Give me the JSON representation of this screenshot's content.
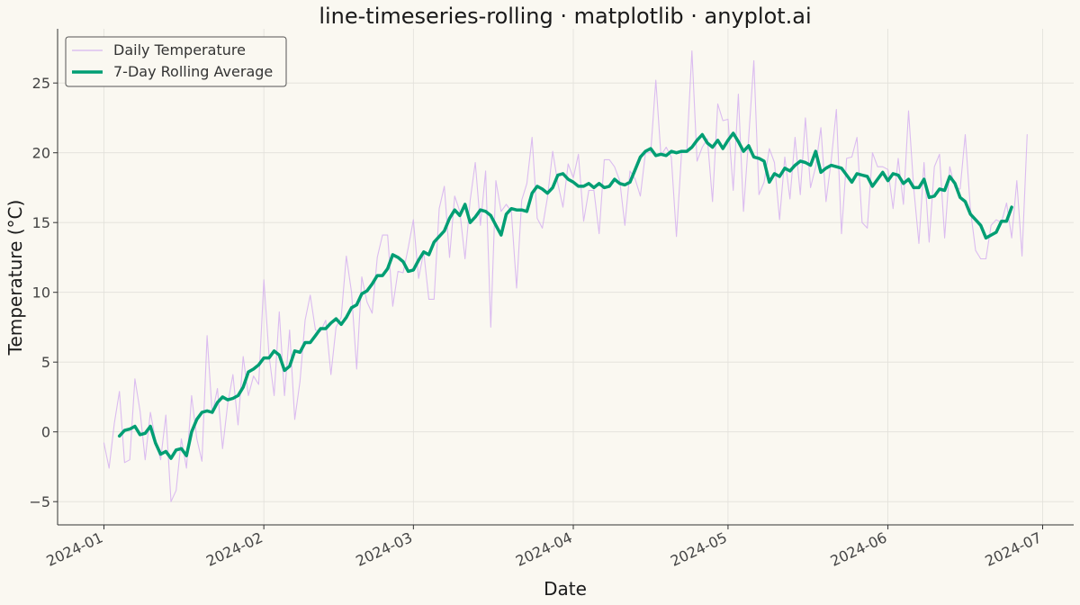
{
  "chart_data": {
    "type": "line",
    "title": "line-timeseries-rolling · matplotlib · anyplot.ai",
    "xlabel": "Date",
    "ylabel": "Temperature (°C)",
    "x_range": [
      "2024-01-01",
      "2024-07-01"
    ],
    "ylim": [
      -6.7,
      28.7
    ],
    "yticks": [
      -5,
      0,
      5,
      10,
      15,
      20,
      25
    ],
    "xticks": [
      "2024-01",
      "2024-02",
      "2024-03",
      "2024-04",
      "2024-05",
      "2024-06",
      "2024-07"
    ],
    "grid": true,
    "legend_position": "upper-left",
    "series": [
      {
        "name": "Daily Temperature",
        "color": "#D7B5F0",
        "start_date": "2024-01-01",
        "values": [
          -0.8,
          -2.6,
          0.6,
          2.9,
          -2.2,
          -2.0,
          3.8,
          1.5,
          -2.0,
          1.4,
          -0.6,
          -2.0,
          1.2,
          -5.0,
          -4.2,
          -0.5,
          -2.6,
          2.6,
          -0.5,
          -2.1,
          6.9,
          1.3,
          3.1,
          -1.2,
          2.0,
          4.1,
          0.5,
          5.4,
          2.6,
          4.0,
          3.4,
          10.9,
          5.5,
          2.6,
          8.6,
          2.6,
          7.3,
          0.9,
          3.6,
          8.0,
          9.8,
          7.3,
          7.2,
          8.0,
          4.1,
          7.5,
          8.2,
          12.6,
          10.0,
          4.5,
          11.1,
          9.3,
          8.5,
          12.5,
          14.1,
          14.1,
          9.0,
          11.5,
          11.4,
          13.2,
          15.2,
          11.0,
          12.9,
          9.5,
          9.5,
          16.0,
          17.6,
          12.5,
          16.9,
          15.8,
          12.4,
          16.6,
          19.3,
          14.8,
          18.7,
          7.5,
          18.0,
          15.8,
          16.3,
          15.8,
          10.3,
          16.6,
          17.8,
          21.1,
          15.3,
          14.6,
          16.8,
          20.1,
          17.8,
          16.1,
          19.2,
          18.2,
          19.9,
          15.1,
          17.3,
          17.3,
          14.2,
          19.5,
          19.5,
          19.0,
          18.0,
          14.8,
          18.7,
          18.1,
          16.9,
          20.0,
          20.0,
          25.2,
          19.8,
          20.4,
          19.7,
          14.0,
          20.0,
          20.1,
          27.3,
          19.4,
          20.4,
          21.0,
          16.5,
          23.5,
          22.3,
          22.4,
          17.3,
          24.2,
          15.8,
          21.0,
          26.6,
          17.0,
          17.9,
          20.3,
          19.3,
          15.2,
          19.7,
          16.7,
          21.1,
          17.0,
          22.5,
          17.5,
          19.0,
          21.8,
          16.5,
          19.4,
          23.1,
          14.2,
          19.6,
          19.7,
          21.1,
          15.0,
          14.6,
          20.0,
          19.0,
          19.0,
          18.8,
          16.0,
          19.6,
          16.3,
          23.0,
          17.5,
          13.5,
          19.3,
          13.6,
          19.0,
          19.9,
          13.9,
          19.0,
          17.5,
          17.4,
          21.3,
          15.9,
          13.0,
          12.4,
          12.4,
          14.8,
          15.2,
          15.0,
          16.4,
          13.9,
          18.0,
          12.6,
          21.3
        ]
      },
      {
        "name": "7-Day Rolling Average",
        "color": "#009E73",
        "start_date": "2024-01-04",
        "values": [
          -0.3,
          0.1,
          0.2,
          0.4,
          -0.2,
          -0.1,
          0.4,
          -0.8,
          -1.6,
          -1.4,
          -1.9,
          -1.3,
          -1.2,
          -1.7,
          0.0,
          0.9,
          1.4,
          1.5,
          1.4,
          2.1,
          2.5,
          2.3,
          2.4,
          2.6,
          3.2,
          4.3,
          4.5,
          4.8,
          5.3,
          5.3,
          5.8,
          5.5,
          4.4,
          4.7,
          5.8,
          5.7,
          6.4,
          6.4,
          6.9,
          7.4,
          7.4,
          7.8,
          8.1,
          7.7,
          8.2,
          8.9,
          9.1,
          9.9,
          10.1,
          10.6,
          11.2,
          11.2,
          11.7,
          12.7,
          12.5,
          12.2,
          11.5,
          11.6,
          12.3,
          12.9,
          12.7,
          13.6,
          14.0,
          14.4,
          15.3,
          15.9,
          15.5,
          16.3,
          15.0,
          15.4,
          15.9,
          15.8,
          15.5,
          14.8,
          14.1,
          15.6,
          16.0,
          15.9,
          15.9,
          15.8,
          17.1,
          17.6,
          17.4,
          17.1,
          17.5,
          18.4,
          18.5,
          18.1,
          17.9,
          17.6,
          17.6,
          17.8,
          17.5,
          17.8,
          17.5,
          17.6,
          18.1,
          17.8,
          17.7,
          17.9,
          18.8,
          19.7,
          20.1,
          20.3,
          19.8,
          19.9,
          19.8,
          20.1,
          20.0,
          20.1,
          20.1,
          20.4,
          20.9,
          21.3,
          20.7,
          20.4,
          20.9,
          20.3,
          20.9,
          21.4,
          20.8,
          20.1,
          20.5,
          19.7,
          19.6,
          19.4,
          17.9,
          18.5,
          18.3,
          18.9,
          18.7,
          19.1,
          19.4,
          19.3,
          19.1,
          20.1,
          18.6,
          18.9,
          19.1,
          19.0,
          18.9,
          18.4,
          17.9,
          18.5,
          18.4,
          18.3,
          17.6,
          18.1,
          18.6,
          18.0,
          18.5,
          18.4,
          17.8,
          18.1,
          17.5,
          17.5,
          18.1,
          16.8,
          16.9,
          17.4,
          17.3,
          18.3,
          17.8,
          16.8,
          16.5,
          15.6,
          15.2,
          14.8,
          13.9,
          14.1,
          14.3,
          15.1,
          15.1,
          16.1
        ]
      }
    ]
  }
}
